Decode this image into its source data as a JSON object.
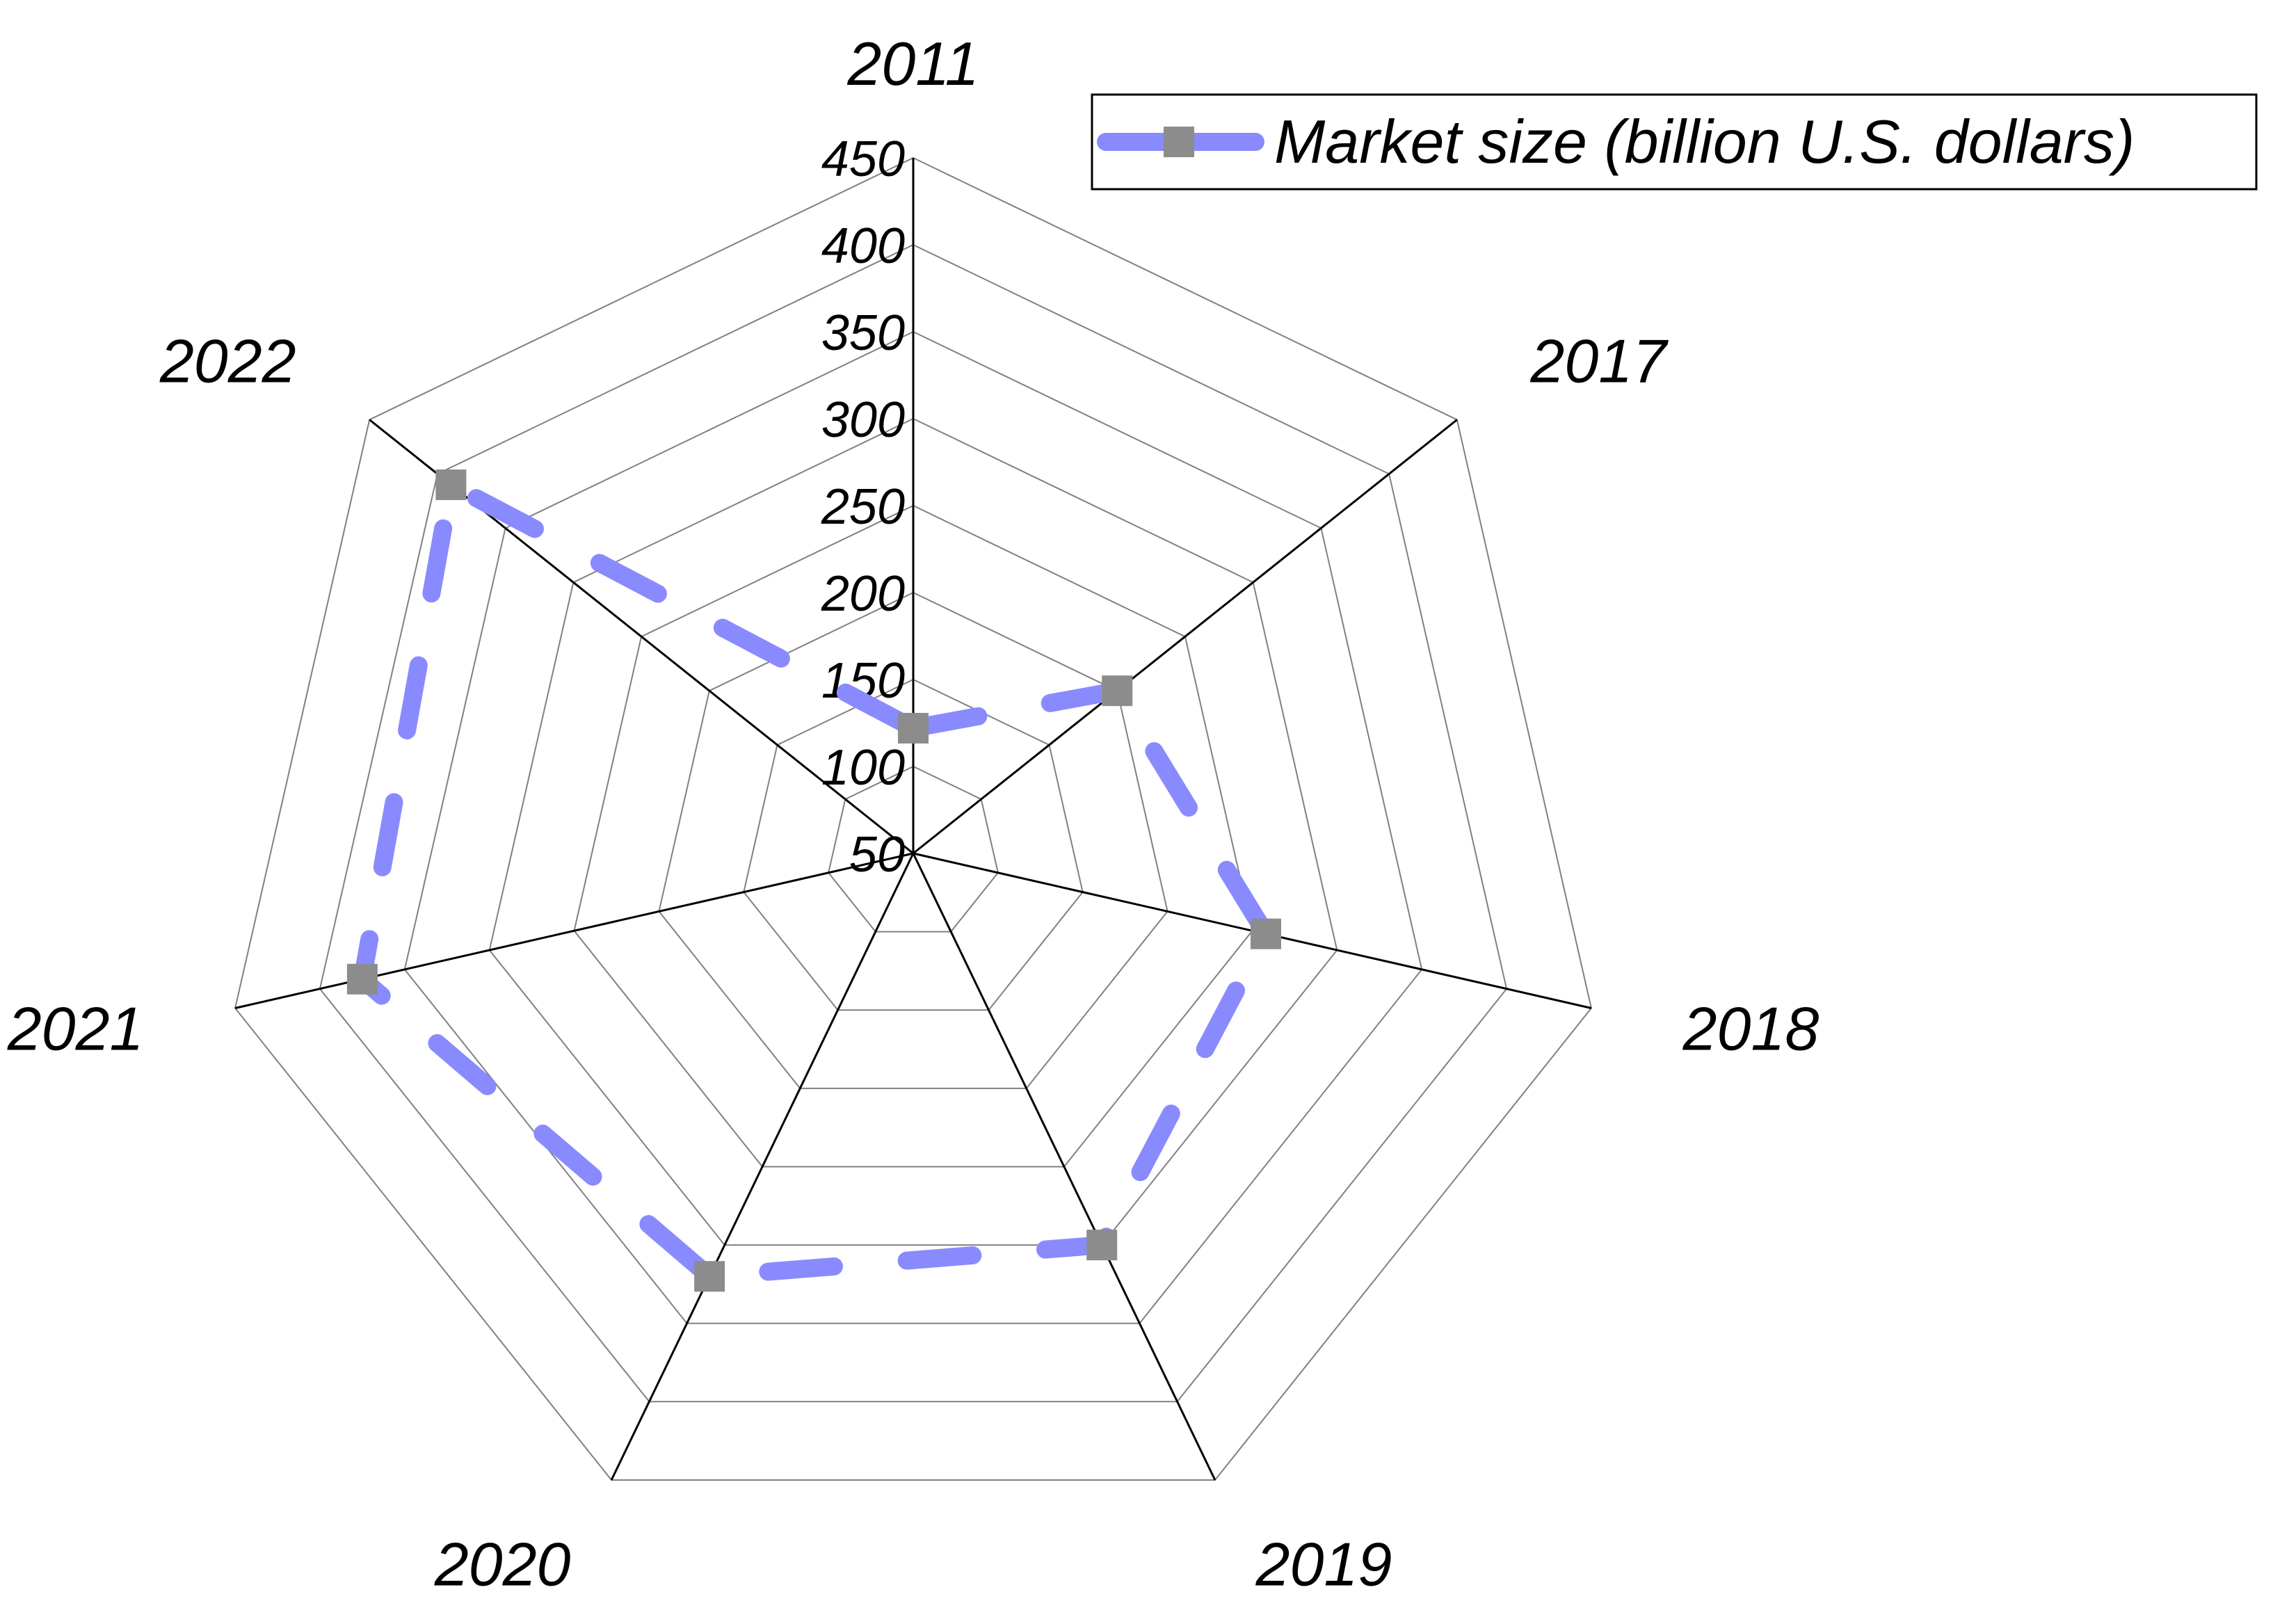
{
  "chart_data": {
    "type": "radar",
    "categories": [
      "2011",
      "2017",
      "2018",
      "2019",
      "2020",
      "2021",
      "2022"
    ],
    "series": [
      {
        "name": "Market size (billion U.S. dollars)",
        "values": [
          122,
          200,
          258,
          300,
          320,
          375,
          390
        ],
        "line_color": "#8a8aff",
        "marker_color": "#8c8c8c",
        "line_style": "dashed",
        "marker": "square"
      }
    ],
    "r_ticks": [
      "50",
      "100",
      "150",
      "200",
      "250",
      "300",
      "350",
      "400",
      "450"
    ],
    "r_range": [
      50,
      450
    ],
    "grid": true,
    "legend_position": "top-right"
  }
}
